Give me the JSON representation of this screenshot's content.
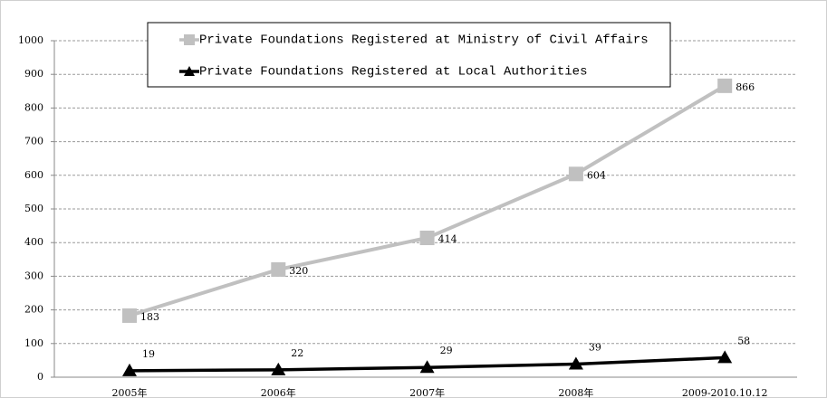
{
  "chart_data": {
    "type": "line",
    "categories": [
      "2005年",
      "2006年",
      "2007年",
      "2008年",
      "2009-2010.10.12"
    ],
    "series": [
      {
        "name": "Private Foundations Registered at Ministry of Civil Affairs",
        "color": "#c0c0c0",
        "marker": "square",
        "values": [
          183,
          320,
          414,
          604,
          866
        ]
      },
      {
        "name": "Private Foundations Registered at Local Authorities",
        "color": "#000000",
        "marker": "triangle",
        "values": [
          19,
          22,
          29,
          39,
          58
        ]
      }
    ],
    "ylim": [
      0,
      1000
    ],
    "yticks": [
      0,
      100,
      200,
      300,
      400,
      500,
      600,
      700,
      800,
      900,
      1000
    ],
    "grid": true,
    "legend": "top"
  }
}
